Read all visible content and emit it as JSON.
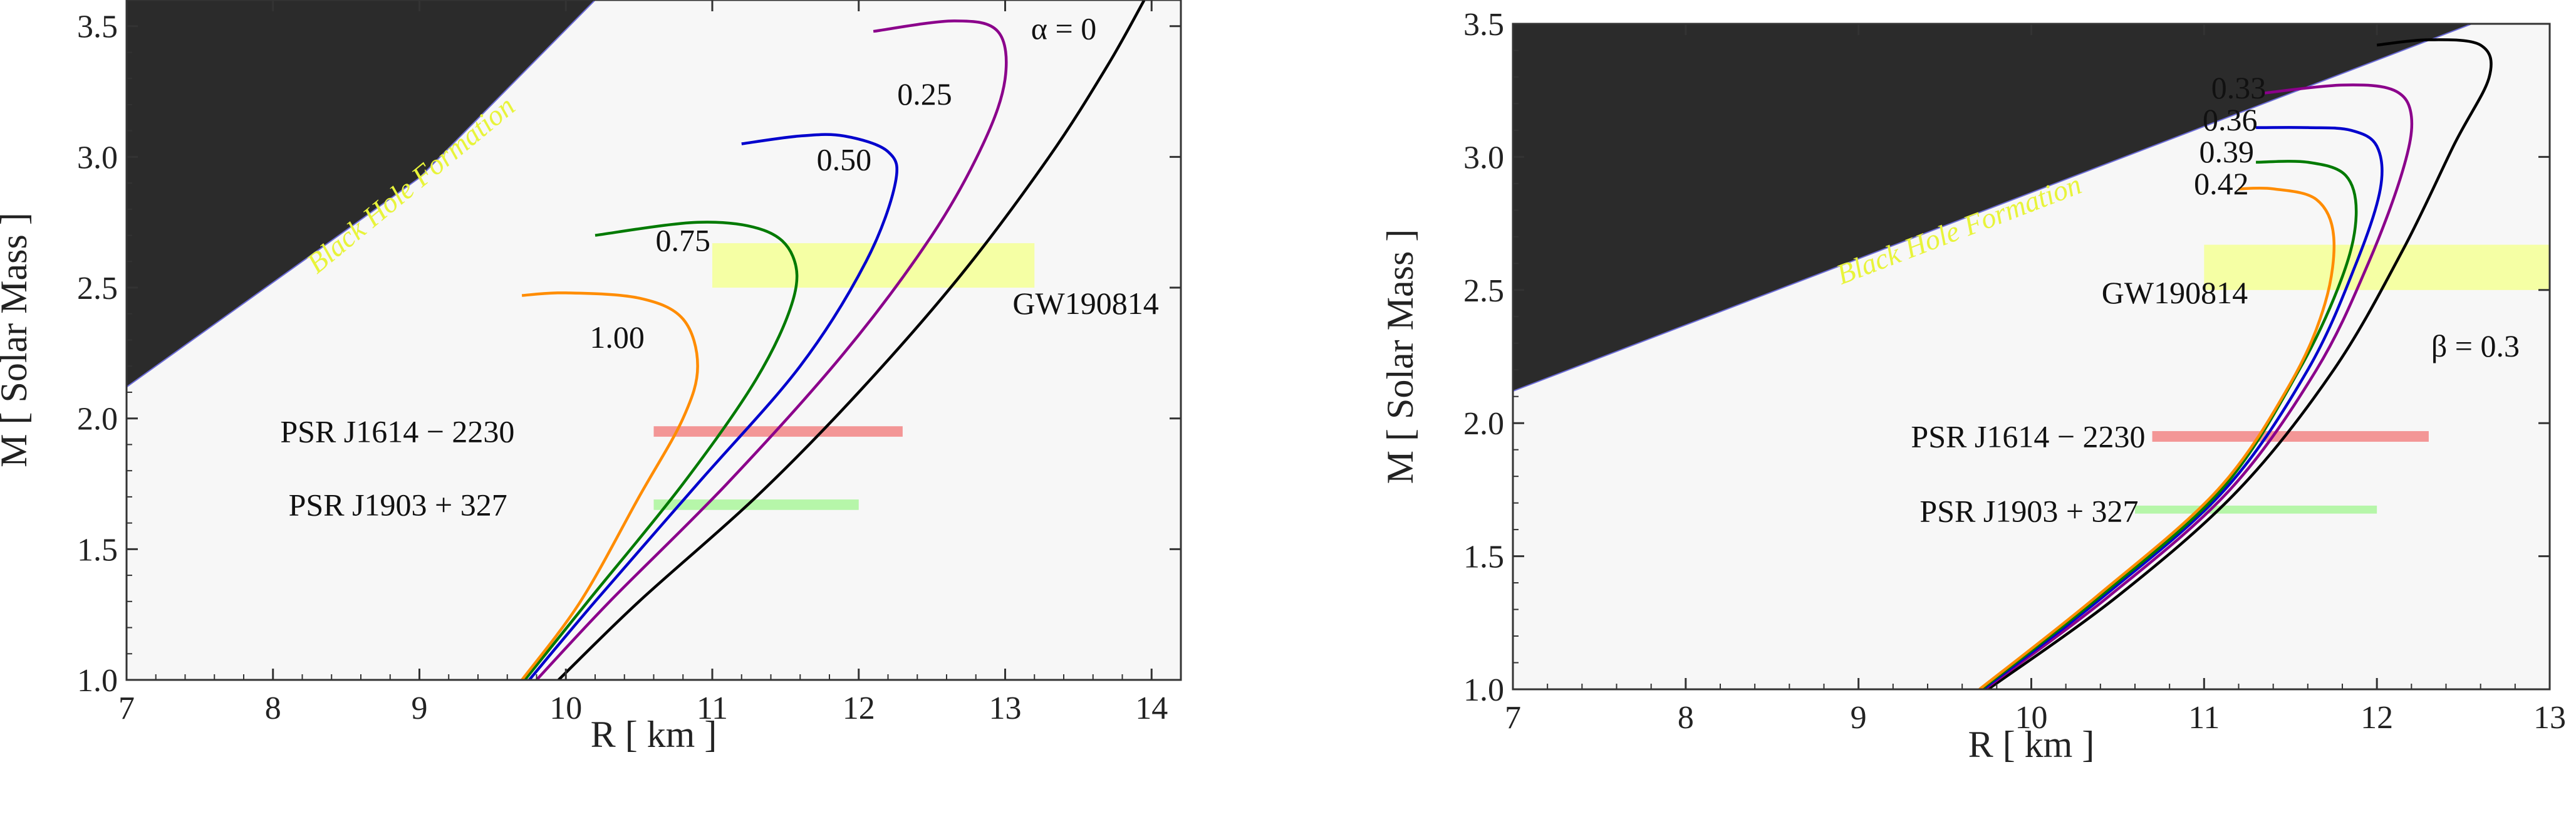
{
  "chart_data": [
    {
      "type": "line",
      "xlabel": "R  [ km ]",
      "ylabel": "M  [ Solar  Mass ]",
      "xlim": [
        7,
        14.2
      ],
      "ylim": [
        1.0,
        3.6
      ],
      "xticks": [
        7,
        8,
        9,
        10,
        11,
        12,
        13,
        14
      ],
      "yticks": [
        1.0,
        1.5,
        2.0,
        2.5,
        3.0,
        3.5
      ],
      "grid": false,
      "region_label": "Black Hole Formation",
      "black_hole_region": {
        "boundary": [
          [
            7,
            2.12
          ],
          [
            9.0,
            2.92
          ],
          [
            10.2,
            3.6
          ]
        ]
      },
      "bands": [
        {
          "label": "GW190814",
          "x": [
            11.0,
            13.2
          ],
          "y": [
            2.5,
            2.67
          ],
          "color": "#f4ff9a"
        },
        {
          "label": "PSR J1614 − 2230",
          "x": [
            10.6,
            12.3
          ],
          "y": [
            1.93,
            1.97
          ],
          "color": "#f28b8b"
        },
        {
          "label": "PSR J1903 + 327",
          "x": [
            10.6,
            12.0
          ],
          "y": [
            1.65,
            1.69
          ],
          "color": "#aef5a0"
        }
      ],
      "series": [
        {
          "label": "α = 0",
          "color": "#000000",
          "points": [
            [
              9.95,
              1.0
            ],
            [
              10.5,
              1.3
            ],
            [
              11.3,
              1.7
            ],
            [
              12.0,
              2.1
            ],
            [
              12.7,
              2.55
            ],
            [
              13.3,
              3.0
            ],
            [
              13.7,
              3.35
            ],
            [
              13.95,
              3.6
            ]
          ]
        },
        {
          "label": "0.25",
          "color": "#8b008b",
          "points": [
            [
              9.8,
              1.0
            ],
            [
              10.3,
              1.3
            ],
            [
              11.1,
              1.75
            ],
            [
              11.9,
              2.25
            ],
            [
              12.5,
              2.7
            ],
            [
              12.85,
              3.05
            ],
            [
              13.0,
              3.3
            ],
            [
              12.95,
              3.48
            ],
            [
              12.65,
              3.52
            ],
            [
              12.1,
              3.48
            ]
          ]
        },
        {
          "label": "0.50",
          "color": "#0000cd",
          "points": [
            [
              9.75,
              1.0
            ],
            [
              10.2,
              1.3
            ],
            [
              10.9,
              1.75
            ],
            [
              11.6,
              2.2
            ],
            [
              12.05,
              2.6
            ],
            [
              12.25,
              2.9
            ],
            [
              12.2,
              3.02
            ],
            [
              11.9,
              3.08
            ],
            [
              11.6,
              3.08
            ],
            [
              11.2,
              3.05
            ]
          ]
        },
        {
          "label": "0.75",
          "color": "#007a00",
          "points": [
            [
              9.72,
              1.0
            ],
            [
              10.15,
              1.3
            ],
            [
              10.8,
              1.75
            ],
            [
              11.3,
              2.15
            ],
            [
              11.55,
              2.45
            ],
            [
              11.55,
              2.62
            ],
            [
              11.35,
              2.72
            ],
            [
              10.9,
              2.75
            ],
            [
              10.2,
              2.7
            ]
          ]
        },
        {
          "label": "1.00",
          "color": "#ff8c00",
          "points": [
            [
              9.7,
              1.0
            ],
            [
              10.1,
              1.3
            ],
            [
              10.5,
              1.7
            ],
            [
              10.8,
              2.0
            ],
            [
              10.9,
              2.2
            ],
            [
              10.8,
              2.38
            ],
            [
              10.5,
              2.46
            ],
            [
              10.0,
              2.48
            ],
            [
              9.7,
              2.47
            ]
          ]
        }
      ],
      "curve_labels": [
        {
          "text": "α = 0",
          "x": 13.4,
          "y": 3.45
        },
        {
          "text": "0.25",
          "x": 12.45,
          "y": 3.2
        },
        {
          "text": "0.50",
          "x": 11.9,
          "y": 2.95
        },
        {
          "text": "0.75",
          "x": 10.8,
          "y": 2.64
        },
        {
          "text": "1.00",
          "x": 10.35,
          "y": 2.27
        },
        {
          "text": "GW190814",
          "x": 13.55,
          "y": 2.4
        }
      ],
      "band_labels": [
        {
          "text": "PSR J1614 − 2230",
          "x": 9.65,
          "y": 1.95
        },
        {
          "text": "PSR J1903 + 327",
          "x": 9.6,
          "y": 1.67
        }
      ]
    },
    {
      "type": "line",
      "xlabel": "R  [ km ]",
      "ylabel": "M  [ Solar  Mass ]",
      "xlim": [
        7,
        13
      ],
      "ylim": [
        1.0,
        3.5
      ],
      "xticks": [
        7,
        8,
        9,
        10,
        11,
        12,
        13
      ],
      "yticks": [
        1.0,
        1.5,
        2.0,
        2.5,
        3.0,
        3.5
      ],
      "grid": false,
      "region_label": "Black Hole Formation",
      "black_hole_region": {
        "boundary": [
          [
            7,
            2.12
          ],
          [
            12.55,
            3.5
          ]
        ]
      },
      "bands": [
        {
          "label": "GW190814",
          "x": [
            11.0,
            13.0
          ],
          "y": [
            2.5,
            2.67
          ],
          "color": "#f4ff9a"
        },
        {
          "label": "PSR J1614 − 2230",
          "x": [
            10.7,
            12.3
          ],
          "y": [
            1.93,
            1.97
          ],
          "color": "#f28b8b"
        },
        {
          "label": "PSR J1903 + 327",
          "x": [
            10.6,
            12.0
          ],
          "y": [
            1.66,
            1.69
          ],
          "color": "#aef5a0"
        }
      ],
      "series": [
        {
          "label": "β = 0.3",
          "color": "#000000",
          "points": [
            [
              9.75,
              1.0
            ],
            [
              10.5,
              1.35
            ],
            [
              11.2,
              1.75
            ],
            [
              11.75,
              2.2
            ],
            [
              12.15,
              2.65
            ],
            [
              12.45,
              3.05
            ],
            [
              12.65,
              3.3
            ],
            [
              12.6,
              3.42
            ],
            [
              12.3,
              3.44
            ],
            [
              12.0,
              3.42
            ]
          ]
        },
        {
          "label": "0.33",
          "color": "#8b008b",
          "points": [
            [
              9.73,
              1.0
            ],
            [
              10.45,
              1.35
            ],
            [
              11.15,
              1.75
            ],
            [
              11.65,
              2.2
            ],
            [
              11.95,
              2.6
            ],
            [
              12.15,
              2.95
            ],
            [
              12.2,
              3.15
            ],
            [
              12.1,
              3.25
            ],
            [
              11.8,
              3.27
            ],
            [
              11.35,
              3.24
            ]
          ]
        },
        {
          "label": "0.36",
          "color": "#0000cd",
          "points": [
            [
              9.72,
              1.0
            ],
            [
              10.42,
              1.35
            ],
            [
              11.12,
              1.75
            ],
            [
              11.6,
              2.2
            ],
            [
              11.88,
              2.6
            ],
            [
              12.02,
              2.88
            ],
            [
              12.0,
              3.04
            ],
            [
              11.85,
              3.1
            ],
            [
              11.6,
              3.11
            ],
            [
              11.3,
              3.11
            ]
          ]
        },
        {
          "label": "0.39",
          "color": "#007a00",
          "points": [
            [
              9.71,
              1.0
            ],
            [
              10.4,
              1.35
            ],
            [
              11.1,
              1.75
            ],
            [
              11.55,
              2.2
            ],
            [
              11.8,
              2.55
            ],
            [
              11.88,
              2.78
            ],
            [
              11.82,
              2.93
            ],
            [
              11.6,
              2.98
            ],
            [
              11.3,
              2.98
            ]
          ]
        },
        {
          "label": "0.42",
          "color": "#ff8c00",
          "points": [
            [
              9.7,
              1.0
            ],
            [
              10.38,
              1.35
            ],
            [
              11.08,
              1.75
            ],
            [
              11.5,
              2.15
            ],
            [
              11.7,
              2.45
            ],
            [
              11.75,
              2.7
            ],
            [
              11.65,
              2.84
            ],
            [
              11.4,
              2.88
            ],
            [
              11.2,
              2.88
            ]
          ]
        }
      ],
      "curve_labels": [
        {
          "text": "0.33",
          "x": 11.2,
          "y": 3.22
        },
        {
          "text": "0.36",
          "x": 11.15,
          "y": 3.1
        },
        {
          "text": "0.39",
          "x": 11.13,
          "y": 2.98
        },
        {
          "text": "0.42",
          "x": 11.1,
          "y": 2.86
        },
        {
          "text": "GW190814",
          "x": 10.83,
          "y": 2.45
        },
        {
          "text": "β = 0.3",
          "x": 12.57,
          "y": 2.25
        }
      ],
      "band_labels": [
        {
          "text": "PSR J1614 − 2230",
          "x": 10.66,
          "y": 1.95
        },
        {
          "text": "PSR J1903 + 327",
          "x": 10.62,
          "y": 1.67
        }
      ]
    }
  ]
}
